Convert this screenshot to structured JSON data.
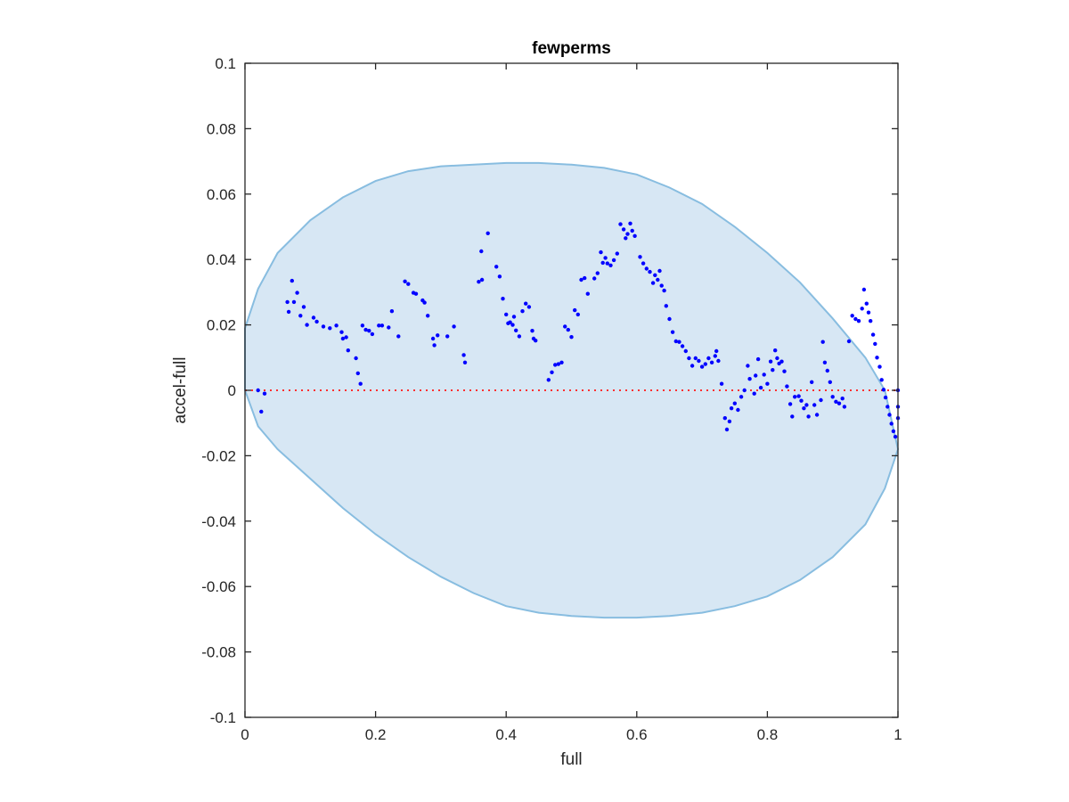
{
  "chart_data": {
    "type": "scatter",
    "title": "fewperms",
    "xlabel": "full",
    "ylabel": "accel-full",
    "xlim": [
      0,
      1
    ],
    "ylim": [
      -0.1,
      0.1
    ],
    "xticks": [
      0,
      0.2,
      0.4,
      0.6,
      0.8,
      1
    ],
    "xtick_labels": [
      "0",
      "0.2",
      "0.4",
      "0.6",
      "0.8",
      "1"
    ],
    "yticks": [
      0.1,
      0.08,
      0.06,
      0.04,
      0.02,
      0,
      -0.02,
      -0.04,
      -0.06,
      -0.08,
      -0.1
    ],
    "ytick_labels": [
      "0.1",
      "0.08",
      "0.06",
      "0.04",
      "0.02",
      "0",
      "-0.02",
      "-0.04",
      "-0.06",
      "-0.08",
      "-0.1"
    ],
    "grid": false,
    "colors": {
      "points": "#0000ff",
      "region_fill": "#d7e7f4",
      "region_stroke": "#88bde0",
      "zero_line": "#ff3030",
      "axes": "#262626"
    },
    "reference_line": {
      "y": 0,
      "style": "dotted"
    },
    "region_outline": [
      [
        0.0,
        0.0
      ],
      [
        0.0,
        0.019
      ],
      [
        0.02,
        0.031
      ],
      [
        0.05,
        0.042
      ],
      [
        0.1,
        0.052
      ],
      [
        0.15,
        0.059
      ],
      [
        0.2,
        0.064
      ],
      [
        0.25,
        0.067
      ],
      [
        0.3,
        0.0685
      ],
      [
        0.35,
        0.069
      ],
      [
        0.4,
        0.0695
      ],
      [
        0.45,
        0.0695
      ],
      [
        0.5,
        0.069
      ],
      [
        0.55,
        0.068
      ],
      [
        0.6,
        0.066
      ],
      [
        0.65,
        0.062
      ],
      [
        0.7,
        0.057
      ],
      [
        0.75,
        0.05
      ],
      [
        0.8,
        0.042
      ],
      [
        0.85,
        0.033
      ],
      [
        0.9,
        0.022
      ],
      [
        0.95,
        0.01
      ],
      [
        0.98,
        0.0
      ],
      [
        1.0,
        -0.018
      ],
      [
        0.98,
        -0.03
      ],
      [
        0.95,
        -0.041
      ],
      [
        0.9,
        -0.051
      ],
      [
        0.85,
        -0.058
      ],
      [
        0.8,
        -0.063
      ],
      [
        0.75,
        -0.066
      ],
      [
        0.7,
        -0.068
      ],
      [
        0.65,
        -0.069
      ],
      [
        0.6,
        -0.0695
      ],
      [
        0.55,
        -0.0695
      ],
      [
        0.5,
        -0.069
      ],
      [
        0.45,
        -0.068
      ],
      [
        0.4,
        -0.066
      ],
      [
        0.35,
        -0.062
      ],
      [
        0.3,
        -0.057
      ],
      [
        0.25,
        -0.051
      ],
      [
        0.2,
        -0.044
      ],
      [
        0.15,
        -0.036
      ],
      [
        0.1,
        -0.027
      ],
      [
        0.05,
        -0.018
      ],
      [
        0.02,
        -0.011
      ],
      [
        0.0,
        0.0
      ]
    ],
    "series": [
      {
        "points": [
          [
            0.02,
            0.0
          ],
          [
            0.025,
            -0.0065
          ],
          [
            0.03,
            -0.001
          ],
          [
            0.065,
            0.027
          ],
          [
            0.067,
            0.024
          ],
          [
            0.072,
            0.0335
          ],
          [
            0.075,
            0.027
          ],
          [
            0.08,
            0.0298
          ],
          [
            0.085,
            0.0228
          ],
          [
            0.09,
            0.0255
          ],
          [
            0.095,
            0.02
          ],
          [
            0.105,
            0.0222
          ],
          [
            0.11,
            0.021
          ],
          [
            0.12,
            0.0195
          ],
          [
            0.13,
            0.019
          ],
          [
            0.14,
            0.0198
          ],
          [
            0.148,
            0.0178
          ],
          [
            0.15,
            0.0158
          ],
          [
            0.155,
            0.0162
          ],
          [
            0.158,
            0.0122
          ],
          [
            0.17,
            0.0098
          ],
          [
            0.173,
            0.0052
          ],
          [
            0.177,
            0.002
          ],
          [
            0.18,
            0.0198
          ],
          [
            0.185,
            0.0185
          ],
          [
            0.19,
            0.0182
          ],
          [
            0.195,
            0.0172
          ],
          [
            0.205,
            0.0198
          ],
          [
            0.21,
            0.0198
          ],
          [
            0.22,
            0.0192
          ],
          [
            0.225,
            0.0242
          ],
          [
            0.235,
            0.0165
          ],
          [
            0.245,
            0.0333
          ],
          [
            0.25,
            0.0325
          ],
          [
            0.258,
            0.0298
          ],
          [
            0.262,
            0.0295
          ],
          [
            0.272,
            0.0275
          ],
          [
            0.275,
            0.0268
          ],
          [
            0.28,
            0.0228
          ],
          [
            0.288,
            0.0158
          ],
          [
            0.29,
            0.0138
          ],
          [
            0.295,
            0.0168
          ],
          [
            0.31,
            0.0165
          ],
          [
            0.32,
            0.0195
          ],
          [
            0.335,
            0.0108
          ],
          [
            0.337,
            0.0085
          ],
          [
            0.358,
            0.0332
          ],
          [
            0.362,
            0.0425
          ],
          [
            0.363,
            0.0338
          ],
          [
            0.372,
            0.048
          ],
          [
            0.385,
            0.0378
          ],
          [
            0.39,
            0.0348
          ],
          [
            0.395,
            0.028
          ],
          [
            0.4,
            0.0232
          ],
          [
            0.403,
            0.0205
          ],
          [
            0.406,
            0.0208
          ],
          [
            0.41,
            0.02
          ],
          [
            0.412,
            0.0225
          ],
          [
            0.415,
            0.0183
          ],
          [
            0.42,
            0.0165
          ],
          [
            0.425,
            0.0242
          ],
          [
            0.43,
            0.0265
          ],
          [
            0.435,
            0.0255
          ],
          [
            0.44,
            0.0182
          ],
          [
            0.442,
            0.0158
          ],
          [
            0.445,
            0.0152
          ],
          [
            0.465,
            0.0032
          ],
          [
            0.47,
            0.0055
          ],
          [
            0.475,
            0.0078
          ],
          [
            0.48,
            0.008
          ],
          [
            0.485,
            0.0085
          ],
          [
            0.49,
            0.0195
          ],
          [
            0.495,
            0.0185
          ],
          [
            0.5,
            0.0163
          ],
          [
            0.505,
            0.0245
          ],
          [
            0.51,
            0.0232
          ],
          [
            0.515,
            0.0338
          ],
          [
            0.52,
            0.0343
          ],
          [
            0.525,
            0.0295
          ],
          [
            0.535,
            0.0342
          ],
          [
            0.54,
            0.0358
          ],
          [
            0.545,
            0.0422
          ],
          [
            0.548,
            0.039
          ],
          [
            0.552,
            0.0405
          ],
          [
            0.555,
            0.0388
          ],
          [
            0.56,
            0.0382
          ],
          [
            0.565,
            0.0398
          ],
          [
            0.57,
            0.0418
          ],
          [
            0.575,
            0.0508
          ],
          [
            0.58,
            0.0492
          ],
          [
            0.583,
            0.0465
          ],
          [
            0.586,
            0.0478
          ],
          [
            0.59,
            0.051
          ],
          [
            0.593,
            0.0488
          ],
          [
            0.597,
            0.0472
          ],
          [
            0.605,
            0.0408
          ],
          [
            0.61,
            0.0388
          ],
          [
            0.615,
            0.0372
          ],
          [
            0.62,
            0.0362
          ],
          [
            0.625,
            0.0328
          ],
          [
            0.628,
            0.0352
          ],
          [
            0.632,
            0.0338
          ],
          [
            0.635,
            0.0365
          ],
          [
            0.638,
            0.032
          ],
          [
            0.642,
            0.0305
          ],
          [
            0.645,
            0.0258
          ],
          [
            0.65,
            0.0218
          ],
          [
            0.655,
            0.0178
          ],
          [
            0.66,
            0.015
          ],
          [
            0.665,
            0.0148
          ],
          [
            0.67,
            0.0135
          ],
          [
            0.675,
            0.012
          ],
          [
            0.68,
            0.0098
          ],
          [
            0.685,
            0.0075
          ],
          [
            0.69,
            0.0098
          ],
          [
            0.695,
            0.009
          ],
          [
            0.7,
            0.0072
          ],
          [
            0.705,
            0.008
          ],
          [
            0.71,
            0.0098
          ],
          [
            0.715,
            0.0085
          ],
          [
            0.72,
            0.0105
          ],
          [
            0.722,
            0.012
          ],
          [
            0.725,
            0.009
          ],
          [
            0.73,
            0.002
          ],
          [
            0.735,
            -0.0085
          ],
          [
            0.738,
            -0.012
          ],
          [
            0.742,
            -0.0095
          ],
          [
            0.745,
            -0.0055
          ],
          [
            0.75,
            -0.004
          ],
          [
            0.755,
            -0.006
          ],
          [
            0.76,
            -0.002
          ],
          [
            0.765,
            0.0
          ],
          [
            0.77,
            0.0075
          ],
          [
            0.773,
            0.0035
          ],
          [
            0.78,
            -0.001
          ],
          [
            0.782,
            0.0045
          ],
          [
            0.786,
            0.0095
          ],
          [
            0.79,
            0.0008
          ],
          [
            0.795,
            0.0048
          ],
          [
            0.8,
            0.002
          ],
          [
            0.805,
            0.0088
          ],
          [
            0.808,
            0.0062
          ],
          [
            0.812,
            0.0122
          ],
          [
            0.815,
            0.0098
          ],
          [
            0.818,
            0.0082
          ],
          [
            0.822,
            0.0088
          ],
          [
            0.826,
            0.0058
          ],
          [
            0.83,
            0.0012
          ],
          [
            0.835,
            -0.0042
          ],
          [
            0.838,
            -0.008
          ],
          [
            0.842,
            -0.002
          ],
          [
            0.848,
            -0.0018
          ],
          [
            0.852,
            -0.0032
          ],
          [
            0.856,
            -0.0055
          ],
          [
            0.86,
            -0.0045
          ],
          [
            0.863,
            -0.008
          ],
          [
            0.868,
            0.0025
          ],
          [
            0.872,
            -0.0045
          ],
          [
            0.876,
            -0.0075
          ],
          [
            0.882,
            -0.003
          ],
          [
            0.885,
            0.0148
          ],
          [
            0.888,
            0.0085
          ],
          [
            0.892,
            0.006
          ],
          [
            0.896,
            0.0025
          ],
          [
            0.9,
            -0.002
          ],
          [
            0.905,
            -0.0035
          ],
          [
            0.91,
            -0.004
          ],
          [
            0.915,
            -0.0025
          ],
          [
            0.918,
            -0.005
          ],
          [
            0.925,
            0.015
          ],
          [
            0.93,
            0.0228
          ],
          [
            0.935,
            0.0218
          ],
          [
            0.94,
            0.0212
          ],
          [
            0.945,
            0.025
          ],
          [
            0.948,
            0.0308
          ],
          [
            0.952,
            0.0265
          ],
          [
            0.955,
            0.0238
          ],
          [
            0.958,
            0.0212
          ],
          [
            0.962,
            0.017
          ],
          [
            0.965,
            0.0142
          ],
          [
            0.968,
            0.01
          ],
          [
            0.972,
            0.0072
          ],
          [
            0.975,
            0.0032
          ],
          [
            0.978,
            0.0002
          ],
          [
            0.981,
            -0.0022
          ],
          [
            0.984,
            -0.005
          ],
          [
            0.987,
            -0.0075
          ],
          [
            0.99,
            -0.0102
          ],
          [
            0.993,
            -0.0125
          ],
          [
            0.996,
            -0.0142
          ],
          [
            1.0,
            0.0
          ],
          [
            1.0,
            -0.005
          ],
          [
            1.0,
            -0.0085
          ]
        ]
      }
    ]
  }
}
